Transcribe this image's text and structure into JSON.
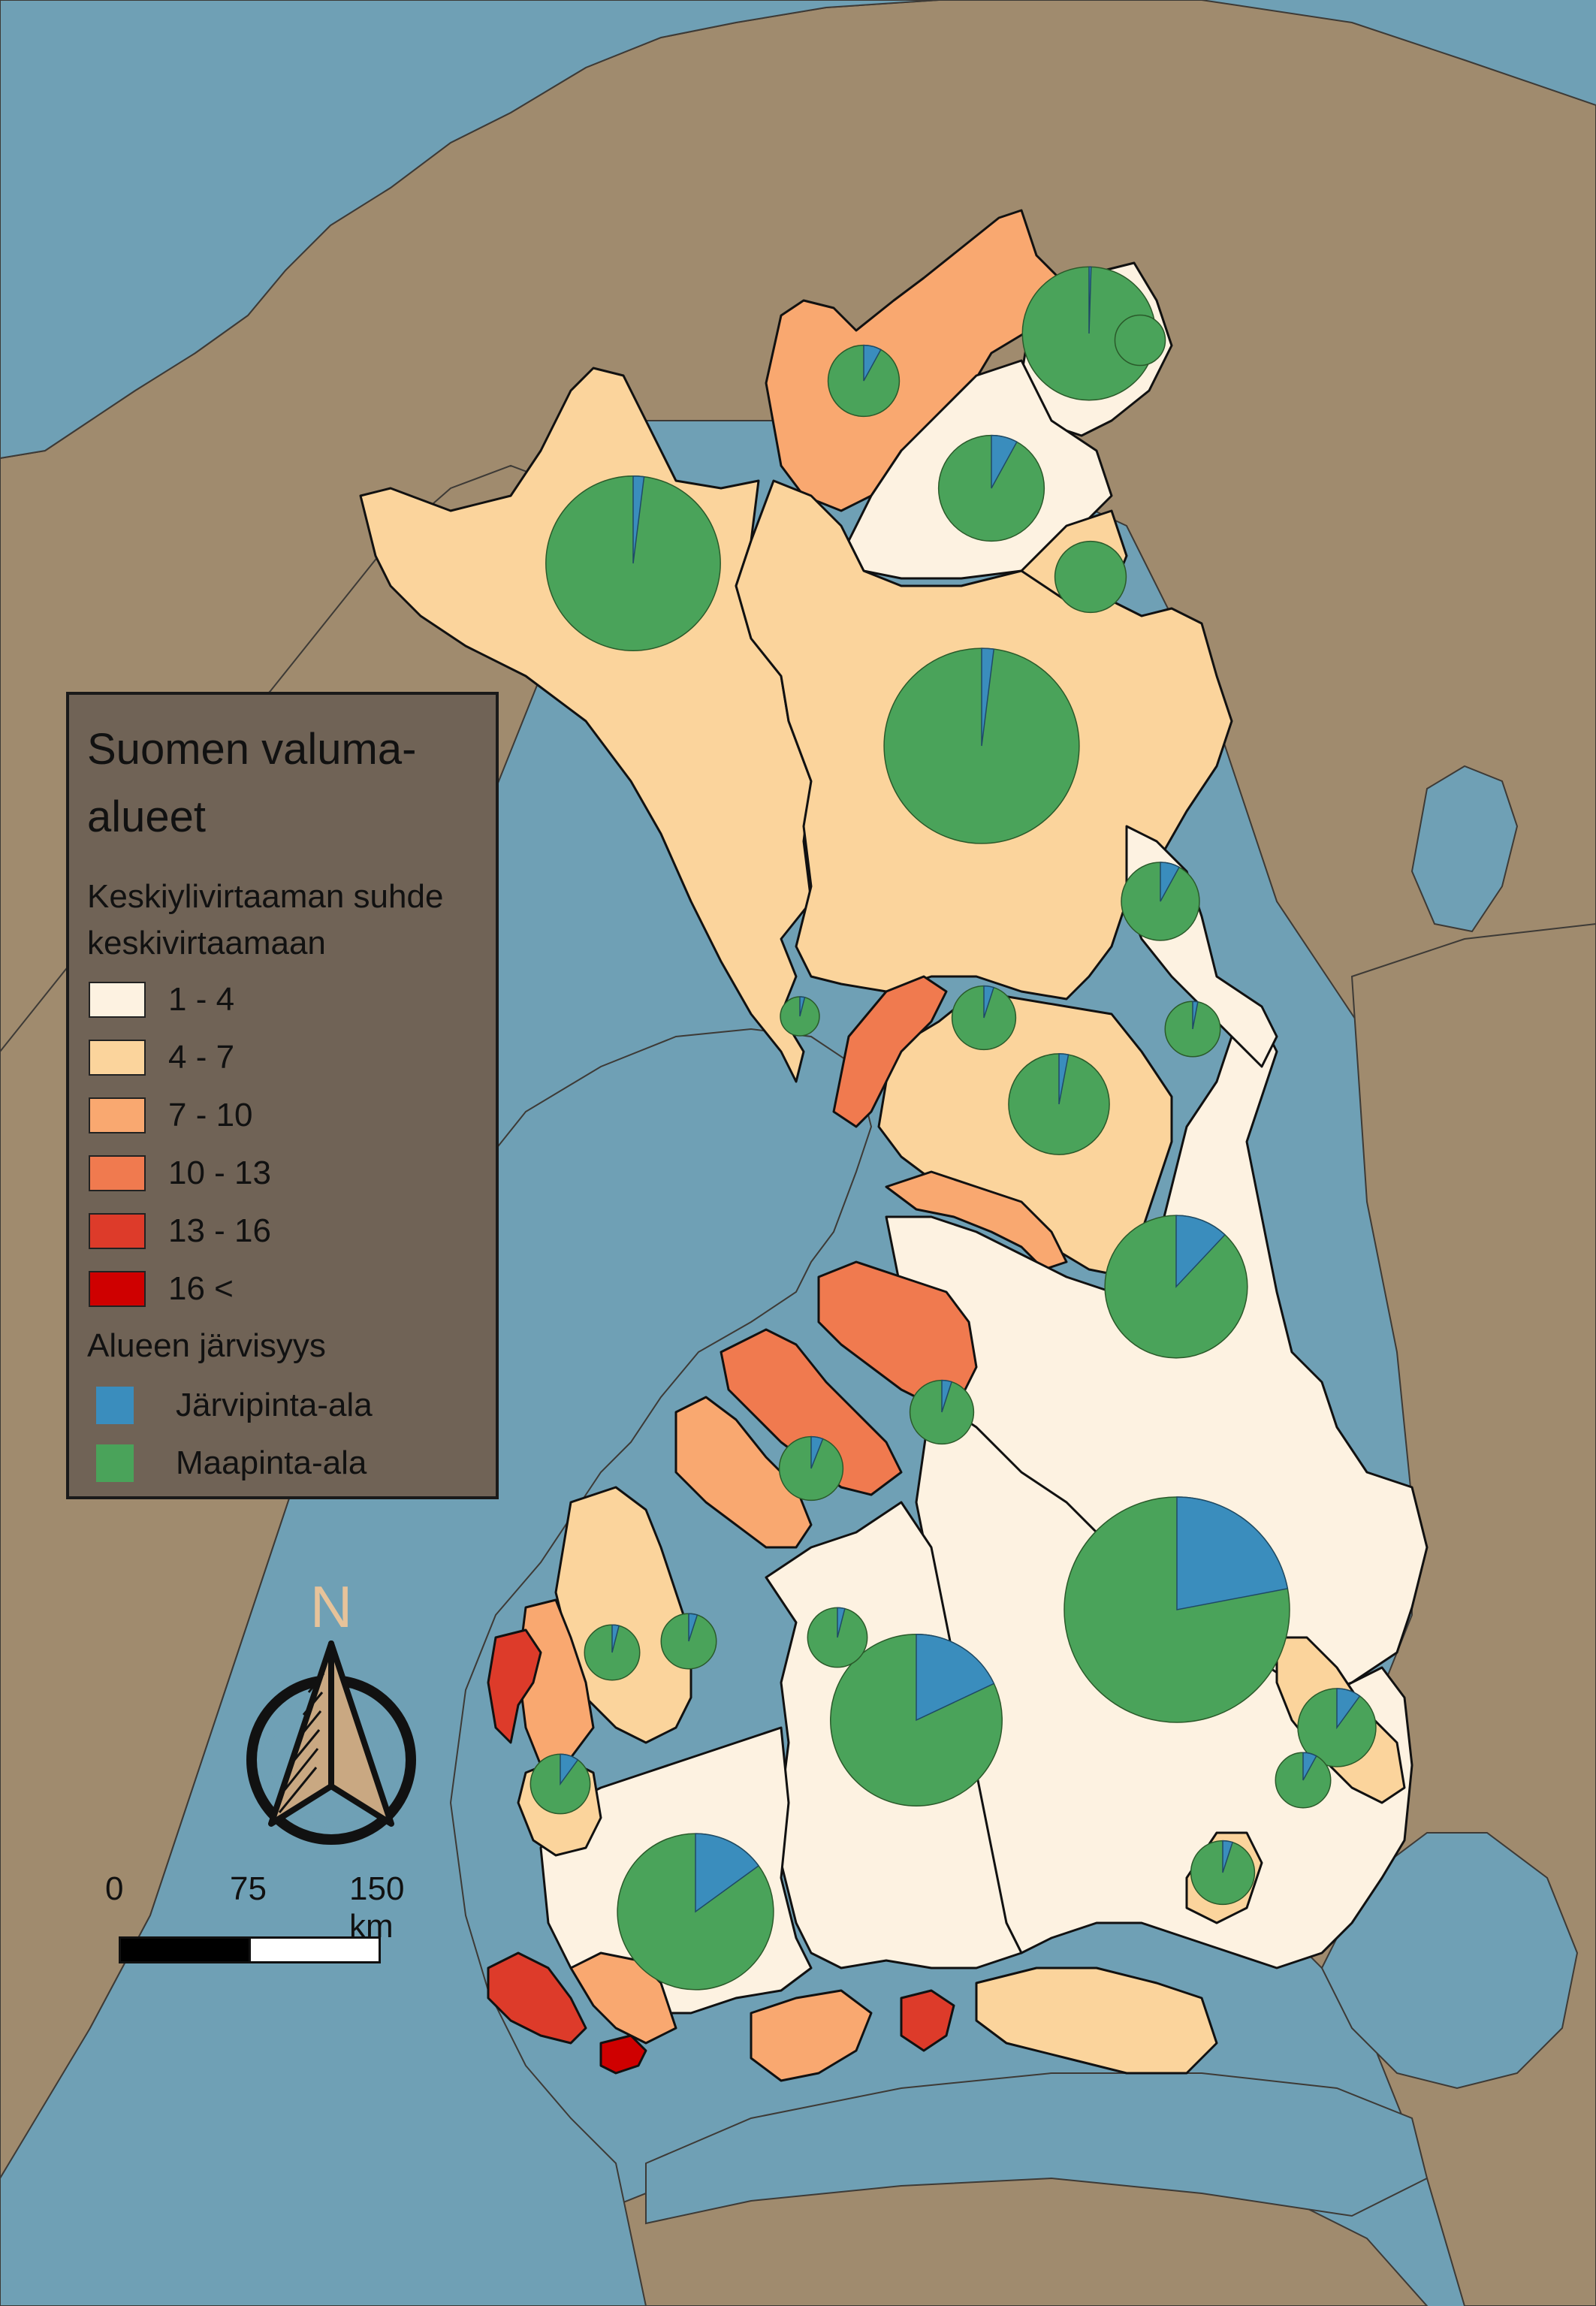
{
  "legend": {
    "title": "Suomen valuma-alueet",
    "subtitle": "Keskiylivirtaaman suhde keskivirtaamaan",
    "classes": [
      {
        "label": "1 - 4",
        "color": "#fdf2e1"
      },
      {
        "label": "4 - 7",
        "color": "#fbd49c"
      },
      {
        "label": "7 - 10",
        "color": "#f9a870"
      },
      {
        "label": "10 - 13",
        "color": "#f07a4f"
      },
      {
        "label": "13 - 16",
        "color": "#dd3b2a"
      },
      {
        "label": "16 <",
        "color": "#cf0000"
      }
    ],
    "lake_title": "Alueen järvisyys",
    "lake_items": [
      {
        "label": "Järvipinta-ala",
        "color": "#3a8dbd"
      },
      {
        "label": "Maapinta-ala",
        "color": "#4aa35a"
      }
    ]
  },
  "compass": {
    "label": "N"
  },
  "scale_bar": {
    "labels": [
      "0",
      "75",
      "150 km"
    ]
  },
  "colors": {
    "sea": "#6fa0b5",
    "land": "#a08b6e",
    "lake": "#3a8dbd",
    "landpart": "#4aa35a"
  },
  "pies": [
    {
      "lake": 0.005,
      "size": 0.35
    },
    {
      "lake": 0.08,
      "size": 0.1
    },
    {
      "lake": 0.02,
      "size": 0.6
    },
    {
      "lake": 0.08,
      "size": 0.22
    },
    {
      "lake": 0.0,
      "size": 0.1
    },
    {
      "lake": 0.0,
      "size": 0.05
    },
    {
      "lake": 0.02,
      "size": 0.75
    },
    {
      "lake": 0.04,
      "size": 0.03
    },
    {
      "lake": 0.08,
      "size": 0.12
    },
    {
      "lake": 0.05,
      "size": 0.08
    },
    {
      "lake": 0.03,
      "size": 0.2
    },
    {
      "lake": 0.03,
      "size": 0.06
    },
    {
      "lake": 0.12,
      "size": 0.4
    },
    {
      "lake": 0.22,
      "size": 1.0
    },
    {
      "lake": 0.18,
      "size": 0.58
    },
    {
      "lake": 0.15,
      "size": 0.48
    },
    {
      "lake": 0.1,
      "size": 0.12
    },
    {
      "lake": 0.08,
      "size": 0.06
    },
    {
      "lake": 0.05,
      "size": 0.08
    },
    {
      "lake": 0.05,
      "size": 0.08
    },
    {
      "lake": 0.06,
      "size": 0.08
    },
    {
      "lake": 0.04,
      "size": 0.07
    },
    {
      "lake": 0.05,
      "size": 0.06
    },
    {
      "lake": 0.04,
      "size": 0.06
    },
    {
      "lake": 0.1,
      "size": 0.07
    }
  ]
}
